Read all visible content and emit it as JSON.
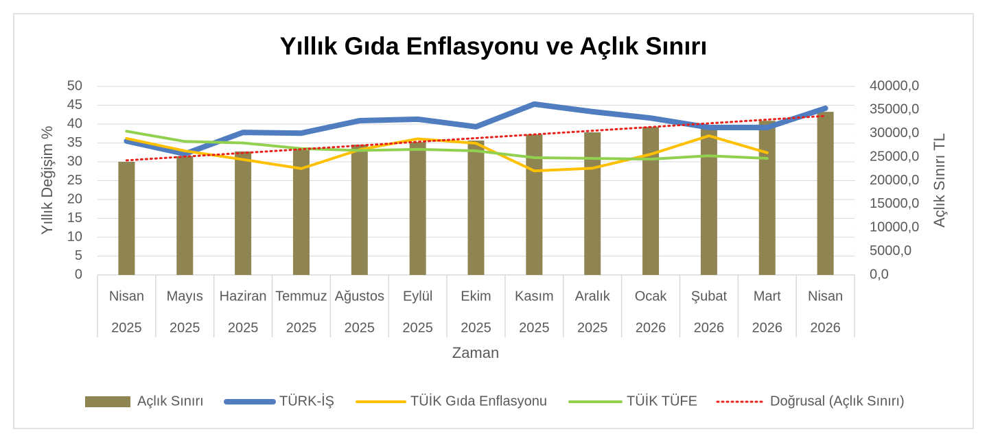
{
  "chart_data": {
    "type": "bar",
    "title": "Yıllık Gıda Enflasyonu ve Açlık Sınırı",
    "x_label": "Zaman",
    "y_label": "Yıllık Değişim %",
    "y2_label": "Açlık Sınırı TL",
    "categories": [
      "Nisan",
      "Mayıs",
      "Haziran",
      "Temmuz",
      "Ağustos",
      "Eylül",
      "Ekim",
      "Kasım",
      "Aralık",
      "Ocak",
      "Şubat",
      "Mart",
      "Nisan"
    ],
    "category_years": [
      "2025",
      "2025",
      "2025",
      "2025",
      "2025",
      "2025",
      "2025",
      "2025",
      "2025",
      "2026",
      "2026",
      "2026",
      "2026"
    ],
    "series": [
      {
        "name": "Açlık Sınırı",
        "type": "bar",
        "axis": "y2",
        "color": "#8f8552",
        "values": [
          24000,
          25200,
          26200,
          27050,
          27650,
          28200,
          28500,
          29800,
          30250,
          31400,
          31700,
          32700,
          34600
        ]
      },
      {
        "name": "TÜRK-İŞ",
        "type": "line",
        "color": "#4f7dbf",
        "width": 8,
        "values": [
          35.5,
          32.1,
          37.8,
          37.6,
          40.9,
          41.3,
          39.3,
          45.3,
          43.3,
          41.6,
          39.1,
          39.1,
          44.2
        ]
      },
      {
        "name": "TÜİK Gıda Enflasyonu",
        "type": "line",
        "color": "#ffc000",
        "width": 4,
        "values": [
          36.2,
          32.9,
          30.6,
          28.2,
          33.2,
          36.1,
          34.9,
          27.6,
          28.3,
          32.0,
          36.9,
          32.4,
          null
        ]
      },
      {
        "name": "TÜİK TÜFE",
        "type": "line",
        "color": "#92d050",
        "width": 4,
        "values": [
          38.1,
          35.4,
          35.0,
          33.5,
          33.0,
          33.3,
          32.9,
          31.1,
          30.9,
          30.7,
          31.6,
          30.9,
          null
        ]
      }
    ],
    "trendline": {
      "name": "Doğrusal (Açlık Sınırı)",
      "color": "#e8221b",
      "of_series": 0
    },
    "ylim": [
      0,
      50
    ],
    "yticks": [
      0,
      5,
      10,
      15,
      20,
      25,
      30,
      35,
      40,
      45,
      50
    ],
    "y2lim": [
      0,
      40000
    ],
    "y2ticks": [
      {
        "value": 0,
        "label": "0,0"
      },
      {
        "value": 5000,
        "label": "5000,0"
      },
      {
        "value": 10000,
        "label": "10000,0"
      },
      {
        "value": 15000,
        "label": "15000,0"
      },
      {
        "value": 20000,
        "label": "20000,0"
      },
      {
        "value": 25000,
        "label": "25000,0"
      },
      {
        "value": 30000,
        "label": "30000,0"
      },
      {
        "value": 35000,
        "label": "35000,0"
      },
      {
        "value": 40000,
        "label": "40000,0"
      }
    ],
    "grid": true,
    "legend": "bottom"
  }
}
